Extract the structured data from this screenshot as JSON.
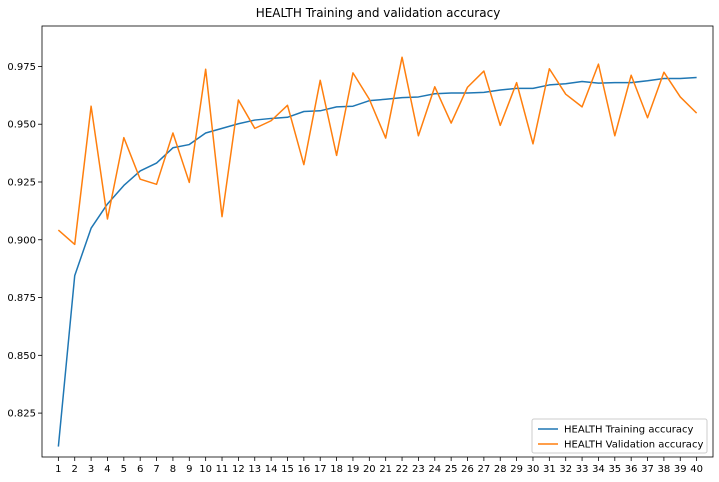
{
  "chart_data": {
    "type": "line",
    "title": "HEALTH Training and validation accuracy",
    "xlabel": "",
    "ylabel": "",
    "x": [
      1,
      2,
      3,
      4,
      5,
      6,
      7,
      8,
      9,
      10,
      11,
      12,
      13,
      14,
      15,
      16,
      17,
      18,
      19,
      20,
      21,
      22,
      23,
      24,
      25,
      26,
      27,
      28,
      29,
      30,
      31,
      32,
      33,
      34,
      35,
      36,
      37,
      38,
      39,
      40
    ],
    "xlim": [
      0,
      41
    ],
    "ylim": [
      0.806,
      0.9925
    ],
    "yticks": [
      0.825,
      0.85,
      0.875,
      0.9,
      0.925,
      0.95,
      0.975
    ],
    "ytick_labels": [
      "0.825",
      "0.850",
      "0.875",
      "0.900",
      "0.925",
      "0.950",
      "0.975"
    ],
    "grid": false,
    "legend_position": "lower-right",
    "series": [
      {
        "name": "HEALTH Training accuracy",
        "color": "#1f77b4",
        "values": [
          0.8105,
          0.8845,
          0.905,
          0.9155,
          0.9235,
          0.9298,
          0.9332,
          0.9398,
          0.9412,
          0.9462,
          0.9482,
          0.9502,
          0.9518,
          0.9525,
          0.953,
          0.9555,
          0.9558,
          0.9575,
          0.9578,
          0.9602,
          0.9608,
          0.9615,
          0.9618,
          0.9632,
          0.9635,
          0.9635,
          0.9638,
          0.9648,
          0.9655,
          0.9655,
          0.967,
          0.9675,
          0.9685,
          0.9678,
          0.968,
          0.968,
          0.9688,
          0.9698,
          0.9698,
          0.9702
        ]
      },
      {
        "name": "HEALTH Validation accuracy",
        "color": "#ff7f0e",
        "values": [
          0.9042,
          0.898,
          0.9578,
          0.909,
          0.9442,
          0.9262,
          0.924,
          0.9462,
          0.9248,
          0.9738,
          0.91,
          0.9605,
          0.9482,
          0.9515,
          0.9582,
          0.9325,
          0.969,
          0.9365,
          0.9722,
          0.9608,
          0.944,
          0.979,
          0.945,
          0.9662,
          0.9505,
          0.966,
          0.973,
          0.9495,
          0.968,
          0.9415,
          0.974,
          0.963,
          0.9575,
          0.976,
          0.945,
          0.9712,
          0.9528,
          0.9725,
          0.9618,
          0.9548
        ]
      }
    ]
  }
}
